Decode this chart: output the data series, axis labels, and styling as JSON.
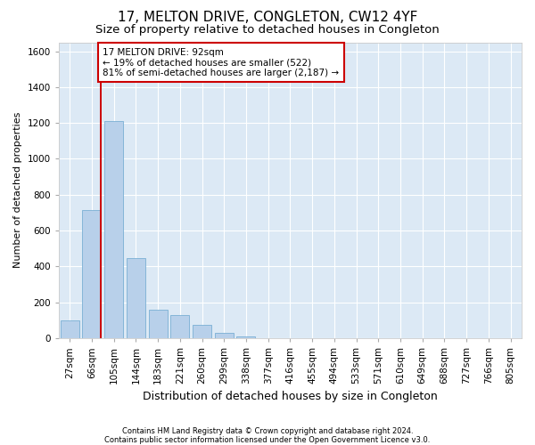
{
  "title": "17, MELTON DRIVE, CONGLETON, CW12 4YF",
  "subtitle": "Size of property relative to detached houses in Congleton",
  "xlabel": "Distribution of detached houses by size in Congleton",
  "ylabel": "Number of detached properties",
  "footnote1": "Contains HM Land Registry data © Crown copyright and database right 2024.",
  "footnote2": "Contains public sector information licensed under the Open Government Licence v3.0.",
  "bar_labels": [
    "27sqm",
    "66sqm",
    "105sqm",
    "144sqm",
    "183sqm",
    "221sqm",
    "260sqm",
    "299sqm",
    "338sqm",
    "377sqm",
    "416sqm",
    "455sqm",
    "494sqm",
    "533sqm",
    "571sqm",
    "610sqm",
    "649sqm",
    "688sqm",
    "727sqm",
    "766sqm",
    "805sqm"
  ],
  "bar_values": [
    100,
    715,
    1210,
    445,
    160,
    130,
    75,
    30,
    10,
    2,
    0,
    0,
    0,
    0,
    0,
    0,
    0,
    0,
    0,
    0,
    0
  ],
  "bar_color": "#b8d0ea",
  "bar_edge_color": "#7aafd4",
  "ylim": [
    0,
    1650
  ],
  "yticks": [
    0,
    200,
    400,
    600,
    800,
    1000,
    1200,
    1400,
    1600
  ],
  "vline_color": "#cc0000",
  "annotation_text": "17 MELTON DRIVE: 92sqm\n← 19% of detached houses are smaller (522)\n81% of semi-detached houses are larger (2,187) →",
  "annotation_box_facecolor": "#ffffff",
  "annotation_box_edgecolor": "#cc0000",
  "plot_bg_color": "#dce9f5",
  "fig_bg_color": "#ffffff",
  "grid_color": "#ffffff",
  "title_fontsize": 11,
  "subtitle_fontsize": 9.5,
  "ylabel_fontsize": 8,
  "xlabel_fontsize": 9,
  "tick_fontsize": 7.5,
  "annot_fontsize": 7.5,
  "footnote_fontsize": 6
}
